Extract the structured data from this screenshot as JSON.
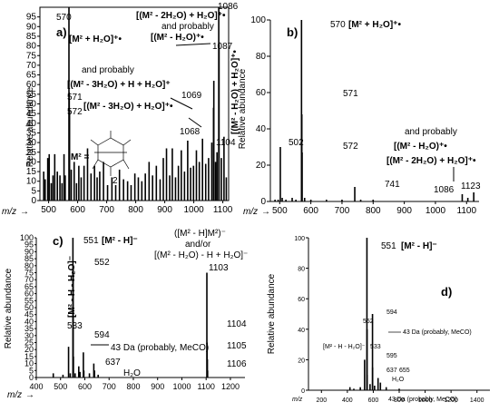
{
  "chart_data": [
    {
      "type": "bar",
      "panel": "a)",
      "xlabel": "m/z",
      "ylabel": "Relative abundance",
      "xlim": [
        470,
        1120
      ],
      "ylim": [
        0,
        100
      ],
      "xticks": [
        500,
        600,
        700,
        800,
        900,
        1000,
        1100
      ],
      "yticks": [
        0,
        5,
        10,
        15,
        20,
        25,
        30,
        35,
        40,
        45,
        50,
        55,
        60,
        65,
        70,
        75,
        80,
        85,
        90,
        95
      ],
      "peak_labels": [
        "570",
        "571",
        "572",
        "1068",
        "1069",
        "1086",
        "1087",
        "1104"
      ],
      "annotations": [
        "[M² + H₂O]⁺•",
        "[(M² - 2H₂O) + H₂O]⁺•",
        "and probably",
        "[(M² - H₂O)⁺•",
        "[(M² - H₂O) + H₂O]⁺•",
        "and probably",
        "[(M² - 3H₂O) + H + H₂O]⁺",
        "[(M² - 3H₂O) + H₂O]⁺•",
        "M² =",
        "2"
      ],
      "peaks": [
        {
          "x": 483,
          "y": 15
        },
        {
          "x": 488,
          "y": 11
        },
        {
          "x": 497,
          "y": 22
        },
        {
          "x": 502,
          "y": 24
        },
        {
          "x": 509,
          "y": 9
        },
        {
          "x": 515,
          "y": 13
        },
        {
          "x": 521,
          "y": 24
        },
        {
          "x": 530,
          "y": 15
        },
        {
          "x": 539,
          "y": 13
        },
        {
          "x": 546,
          "y": 9
        },
        {
          "x": 553,
          "y": 24
        },
        {
          "x": 557,
          "y": 13
        },
        {
          "x": 570,
          "y": 100
        },
        {
          "x": 571,
          "y": 56
        },
        {
          "x": 572,
          "y": 47
        },
        {
          "x": 578,
          "y": 16
        },
        {
          "x": 588,
          "y": 20
        },
        {
          "x": 596,
          "y": 9
        },
        {
          "x": 604,
          "y": 18
        },
        {
          "x": 612,
          "y": 12
        },
        {
          "x": 622,
          "y": 18
        },
        {
          "x": 634,
          "y": 27
        },
        {
          "x": 646,
          "y": 14
        },
        {
          "x": 658,
          "y": 18
        },
        {
          "x": 667,
          "y": 12
        },
        {
          "x": 676,
          "y": 15
        },
        {
          "x": 689,
          "y": 20
        },
        {
          "x": 703,
          "y": 8
        },
        {
          "x": 718,
          "y": 12
        },
        {
          "x": 731,
          "y": 8
        },
        {
          "x": 744,
          "y": 16
        },
        {
          "x": 758,
          "y": 11
        },
        {
          "x": 772,
          "y": 10
        },
        {
          "x": 784,
          "y": 8
        },
        {
          "x": 797,
          "y": 14
        },
        {
          "x": 809,
          "y": 12
        },
        {
          "x": 821,
          "y": 10
        },
        {
          "x": 833,
          "y": 14
        },
        {
          "x": 846,
          "y": 20
        },
        {
          "x": 858,
          "y": 13
        },
        {
          "x": 871,
          "y": 18
        },
        {
          "x": 884,
          "y": 11
        },
        {
          "x": 895,
          "y": 22
        },
        {
          "x": 906,
          "y": 27
        },
        {
          "x": 917,
          "y": 13
        },
        {
          "x": 926,
          "y": 27
        },
        {
          "x": 937,
          "y": 12
        },
        {
          "x": 947,
          "y": 18
        },
        {
          "x": 957,
          "y": 26
        },
        {
          "x": 968,
          "y": 15
        },
        {
          "x": 979,
          "y": 31
        },
        {
          "x": 989,
          "y": 17
        },
        {
          "x": 999,
          "y": 18
        },
        {
          "x": 1009,
          "y": 26
        },
        {
          "x": 1019,
          "y": 20
        },
        {
          "x": 1030,
          "y": 32
        },
        {
          "x": 1041,
          "y": 19
        },
        {
          "x": 1051,
          "y": 22
        },
        {
          "x": 1062,
          "y": 30
        },
        {
          "x": 1068,
          "y": 48
        },
        {
          "x": 1069,
          "y": 62
        },
        {
          "x": 1075,
          "y": 20
        },
        {
          "x": 1080,
          "y": 25
        },
        {
          "x": 1086,
          "y": 100
        },
        {
          "x": 1087,
          "y": 82
        },
        {
          "x": 1095,
          "y": 22
        },
        {
          "x": 1104,
          "y": 33
        },
        {
          "x": 1112,
          "y": 12
        }
      ]
    },
    {
      "type": "bar",
      "panel": "b)",
      "xlabel": "m/z",
      "ylabel": "Relative abundance",
      "xlim": [
        470,
        1140
      ],
      "ylim": [
        0,
        100
      ],
      "xticks": [
        500,
        600,
        700,
        800,
        900,
        1000,
        1100
      ],
      "yticks": [
        0,
        20,
        40,
        60,
        80,
        100
      ],
      "peak_labels": [
        "570",
        "571",
        "572",
        "502",
        "741",
        "1086",
        "1123"
      ],
      "annotations": [
        "[M² + H₂O]⁺•",
        "and probably",
        "[(M² - H₂O)⁺•",
        "[(M² - 2H₂O) + H₂O]⁺•"
      ],
      "peaks": [
        {
          "x": 485,
          "y": 1
        },
        {
          "x": 495,
          "y": 1
        },
        {
          "x": 502,
          "y": 30
        },
        {
          "x": 508,
          "y": 2
        },
        {
          "x": 520,
          "y": 1
        },
        {
          "x": 540,
          "y": 2
        },
        {
          "x": 552,
          "y": 1
        },
        {
          "x": 570,
          "y": 100
        },
        {
          "x": 571,
          "y": 48
        },
        {
          "x": 572,
          "y": 27
        },
        {
          "x": 580,
          "y": 2
        },
        {
          "x": 600,
          "y": 1
        },
        {
          "x": 650,
          "y": 1
        },
        {
          "x": 700,
          "y": 1
        },
        {
          "x": 741,
          "y": 8
        },
        {
          "x": 760,
          "y": 1
        },
        {
          "x": 800,
          "y": 1
        },
        {
          "x": 1086,
          "y": 4
        },
        {
          "x": 1104,
          "y": 2
        },
        {
          "x": 1123,
          "y": 5
        }
      ]
    },
    {
      "type": "bar",
      "panel": "c)",
      "xlabel": "m/z",
      "ylabel": "Relative abundance",
      "xlim": [
        400,
        1260
      ],
      "ylim": [
        0,
        100
      ],
      "xticks": [
        400,
        500,
        600,
        700,
        800,
        900,
        1000,
        1100,
        1200
      ],
      "yticks": [
        0,
        5,
        10,
        15,
        20,
        25,
        30,
        35,
        40,
        45,
        50,
        55,
        60,
        65,
        70,
        75,
        80,
        85,
        90,
        95,
        100
      ],
      "peak_labels": [
        "551",
        "552",
        "533",
        "594",
        "637",
        "1103",
        "1104",
        "1105",
        "1106"
      ],
      "annotations": [
        "[M² - H]⁻",
        "[M² - H - H₂O]⁻",
        "43 Da (probably, MeCO)",
        "H₂O",
        "([M² - H]M²)⁻",
        "and/or",
        "[(M² - H₂O) - H + H₂O]⁻"
      ],
      "peaks": [
        {
          "x": 470,
          "y": 3
        },
        {
          "x": 510,
          "y": 2
        },
        {
          "x": 533,
          "y": 22
        },
        {
          "x": 540,
          "y": 3
        },
        {
          "x": 551,
          "y": 100
        },
        {
          "x": 552,
          "y": 78
        },
        {
          "x": 553,
          "y": 15
        },
        {
          "x": 560,
          "y": 3
        },
        {
          "x": 575,
          "y": 8
        },
        {
          "x": 580,
          "y": 4
        },
        {
          "x": 594,
          "y": 18
        },
        {
          "x": 596,
          "y": 5
        },
        {
          "x": 619,
          "y": 3
        },
        {
          "x": 637,
          "y": 10
        },
        {
          "x": 640,
          "y": 5
        },
        {
          "x": 655,
          "y": 2
        },
        {
          "x": 1103,
          "y": 75
        },
        {
          "x": 1104,
          "y": 25
        },
        {
          "x": 1105,
          "y": 13
        },
        {
          "x": 1106,
          "y": 5
        }
      ]
    },
    {
      "type": "bar",
      "panel": "d)",
      "xlabel": "m/z",
      "ylabel": "Relative abundance",
      "xlim": [
        100,
        1500
      ],
      "ylim": [
        0,
        100
      ],
      "xticks": [
        200,
        400,
        600,
        800,
        1000,
        1200,
        1400
      ],
      "yticks": [
        0,
        20,
        40,
        60,
        80,
        100
      ],
      "peak_labels": [
        "551",
        "552",
        "594",
        "533",
        "595",
        "637",
        "655"
      ],
      "annotations": [
        "[M² - H]⁻",
        "43 Da (probably, MeCO)",
        "[M² - H - H₂O]⁻",
        "H₂O",
        "43 Da (probably, MeCO)"
      ],
      "peaks": [
        {
          "x": 420,
          "y": 2
        },
        {
          "x": 450,
          "y": 1
        },
        {
          "x": 500,
          "y": 2
        },
        {
          "x": 533,
          "y": 20
        },
        {
          "x": 551,
          "y": 100
        },
        {
          "x": 552,
          "y": 40
        },
        {
          "x": 553,
          "y": 10
        },
        {
          "x": 575,
          "y": 4
        },
        {
          "x": 594,
          "y": 50
        },
        {
          "x": 595,
          "y": 15
        },
        {
          "x": 610,
          "y": 3
        },
        {
          "x": 637,
          "y": 8
        },
        {
          "x": 655,
          "y": 5
        },
        {
          "x": 700,
          "y": 2
        },
        {
          "x": 800,
          "y": 1
        }
      ]
    }
  ],
  "icons": {
    "right_arrow": "→",
    "structure": "chemical-structure-icon"
  },
  "colors": {
    "ink": "#000000",
    "background": "#ffffff"
  }
}
